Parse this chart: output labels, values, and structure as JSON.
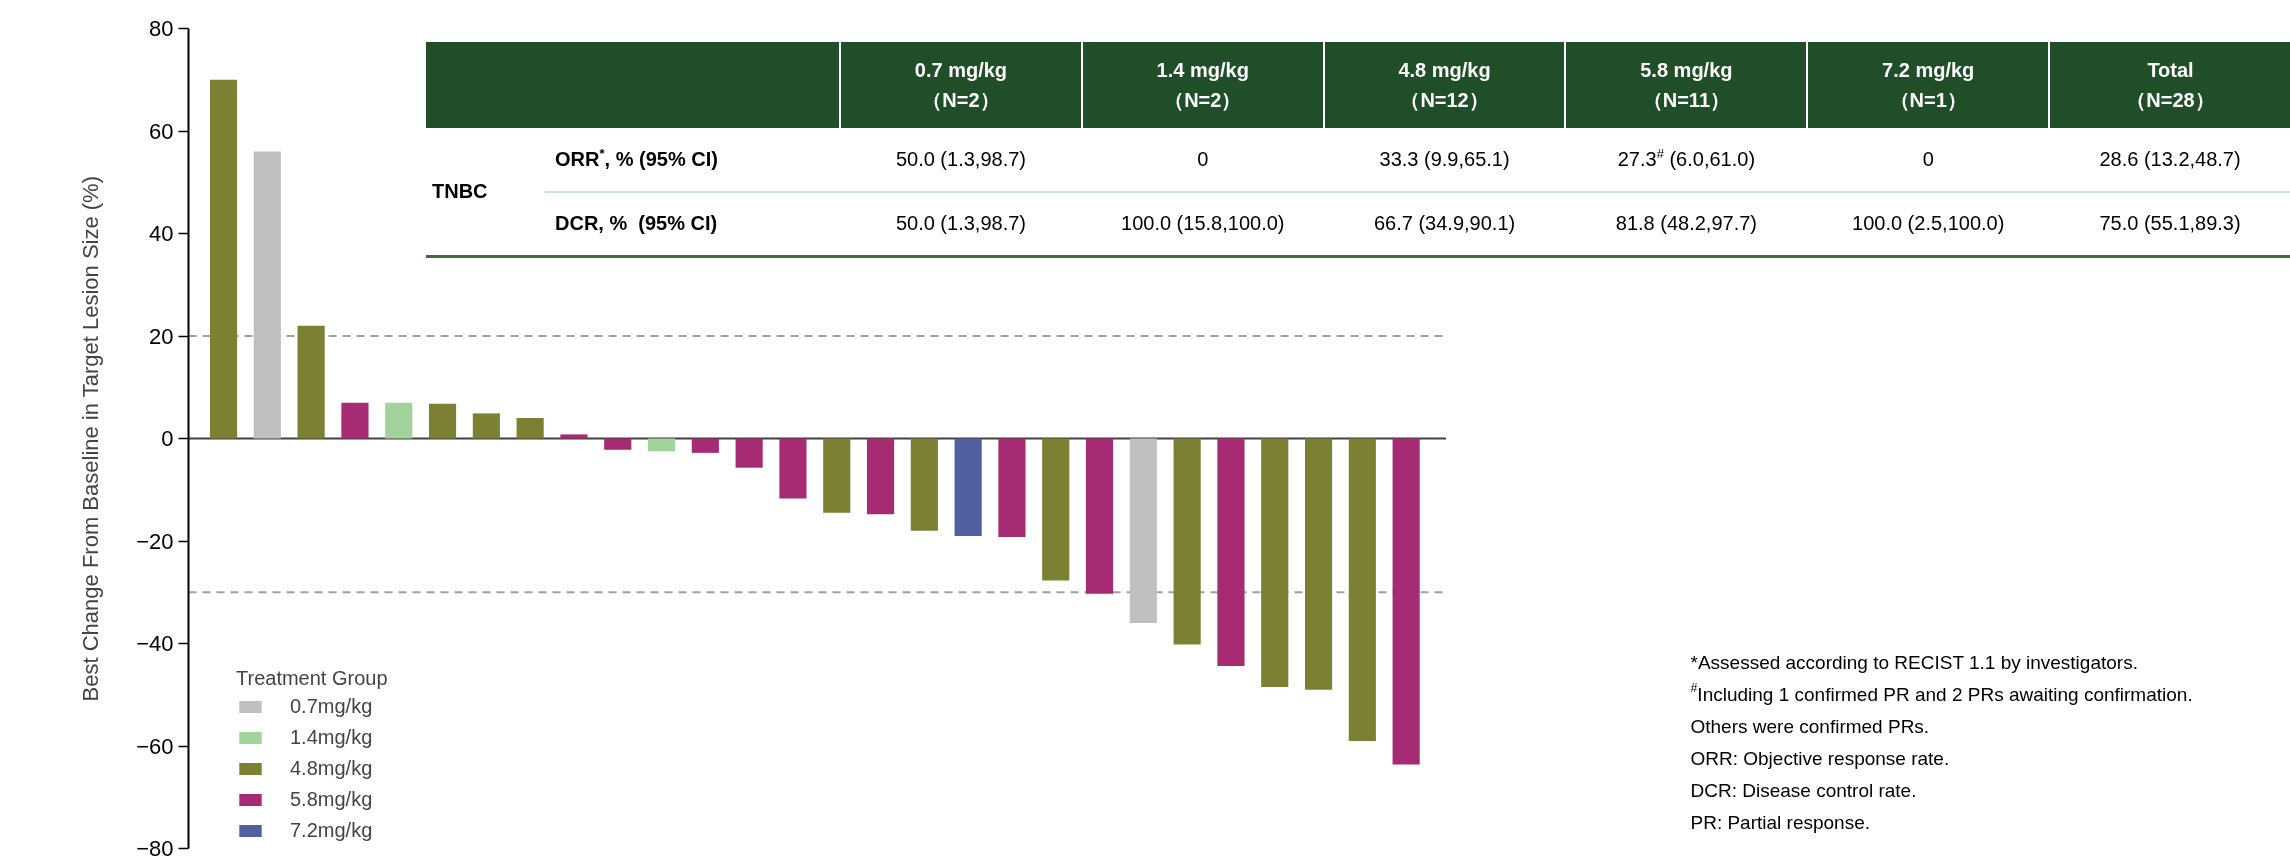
{
  "chart_data": [
    {
      "type": "bar",
      "ylabel": "Best Change From Baseline in Target Lesion Size (%)",
      "categories": [
        null,
        null,
        null,
        null,
        null,
        null,
        null,
        null,
        null,
        null,
        null,
        null,
        null,
        null,
        null,
        null,
        null,
        null,
        null,
        null,
        null,
        null,
        null,
        null,
        null,
        null,
        null,
        null
      ],
      "series": [
        {
          "name": "0.7mg/kg",
          "color": "#c0c0c0",
          "values": [
            null,
            56,
            null,
            null,
            null,
            null,
            null,
            null,
            null,
            null,
            null,
            null,
            null,
            null,
            null,
            null,
            null,
            null,
            null,
            null,
            null,
            -36,
            null,
            null,
            null,
            null,
            null,
            null
          ]
        },
        {
          "name": "1.4mg/kg",
          "color": "#a3d39c",
          "values": [
            null,
            null,
            null,
            null,
            7,
            null,
            null,
            null,
            null,
            null,
            -2.5,
            null,
            null,
            null,
            null,
            null,
            null,
            null,
            null,
            null,
            null,
            null,
            null,
            null,
            null,
            null,
            null,
            null
          ]
        },
        {
          "name": "4.8mg/kg",
          "color": "#7c8033",
          "values": [
            70,
            null,
            22,
            null,
            null,
            6.8,
            4.9,
            4,
            null,
            null,
            null,
            null,
            null,
            null,
            -14.5,
            null,
            -18,
            null,
            null,
            -27.7,
            null,
            null,
            -40.2,
            null,
            -48.5,
            -49,
            -59,
            null
          ]
        },
        {
          "name": "5.8mg/kg",
          "color": "#a62b73",
          "values": [
            null,
            null,
            null,
            7,
            null,
            null,
            null,
            null,
            0.8,
            -2.2,
            null,
            -2.8,
            -5.7,
            -11.7,
            null,
            -14.8,
            null,
            null,
            -19.2,
            null,
            -30.3,
            null,
            null,
            -44.4,
            null,
            null,
            null,
            -63.6
          ]
        },
        {
          "name": "7.2mg/kg",
          "color": "#53609f",
          "values": [
            null,
            null,
            null,
            null,
            null,
            null,
            null,
            null,
            null,
            null,
            null,
            null,
            null,
            null,
            null,
            null,
            null,
            -19,
            null,
            null,
            null,
            null,
            null,
            null,
            null,
            null,
            null,
            null
          ]
        }
      ],
      "ylim": [
        -80,
        80
      ],
      "yticks": [
        -80,
        -60,
        -40,
        -20,
        0,
        20,
        40,
        60,
        80
      ],
      "ref_lines": [
        {
          "axis": "y",
          "value": 20,
          "color": "#a0a0a0",
          "line_style": "dashed"
        },
        {
          "axis": "y",
          "value": -30,
          "color": "#a0a0a0",
          "line_style": "dashed"
        }
      ],
      "legend": "bottom left",
      "legend_title": "Treatment Group",
      "annotations": [
        "*Assessed according to RECIST 1.1 by investigators.",
        "$^{#}$Including 1 confirmed PR and 2 PRs awaiting confirmation.",
        "Others were confirmed PRs.",
        "ORR: Objective response rate.",
        "DCR: Disease control rate.",
        "PR: Partial response."
      ]
    },
    {
      "type": "other",
      "categories": [
        "0.7 mg/kg\n（N=2）",
        "1.4 mg/kg\n（N=2）",
        "4.8 mg/kg\n（N=12）",
        "5.8 mg/kg\n（N=11）",
        "7.2 mg/kg\n（N=1）",
        "Total\n（N=28）"
      ],
      "y_categories": [
        "ORR$^{*}$, % (95% CI)",
        "DCR, %  (95% CI)"
      ],
      "annotations": [
        "TNBC"
      ],
      "cell_labels": [
        [
          "50.0 (1.3,98.7)",
          "0",
          "33.3 (9.9,65.1)",
          "27.3$^{#}$ (6.0,61.0)",
          "0",
          "28.6 (13.2,48.7)"
        ],
        [
          "50.0 (1.3,98.7)",
          "100.0 (15.8,100.0)",
          "66.7 (34.9,90.1)",
          "81.8 (48.2,97.7)",
          "100.0 (2.5,100.0)",
          "75.0 (55.1,89.3)"
        ]
      ]
    }
  ]
}
